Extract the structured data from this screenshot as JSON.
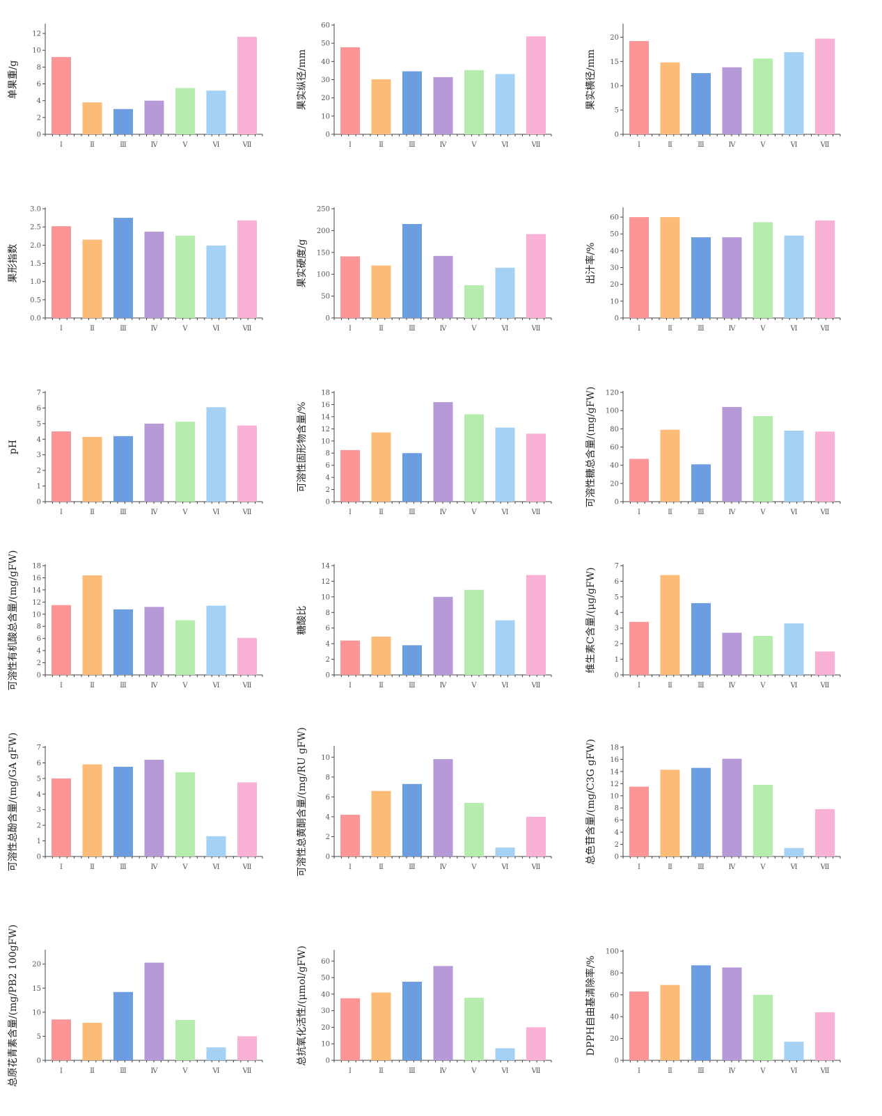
{
  "colors": [
    "#fc9696",
    "#fdbb78",
    "#6b9de0",
    "#b69ad8",
    "#b6edae",
    "#a4d1f4",
    "#f9b2d6"
  ],
  "chart_data": [
    {
      "type": "bar",
      "ylabel": "单果重/g",
      "categories": [
        "Ⅰ",
        "Ⅱ",
        "Ⅲ",
        "Ⅳ",
        "Ⅴ",
        "Ⅵ",
        "Ⅶ"
      ],
      "values": [
        9.2,
        3.8,
        3.0,
        4.0,
        5.5,
        5.2,
        11.6
      ],
      "ylim": [
        0,
        13
      ],
      "yticks": [
        0,
        2,
        4,
        6,
        8,
        10,
        12
      ]
    },
    {
      "type": "bar",
      "ylabel": "果实纵径/mm",
      "categories": [
        "Ⅰ",
        "Ⅱ",
        "Ⅲ",
        "Ⅳ",
        "Ⅴ",
        "Ⅵ",
        "Ⅶ"
      ],
      "values": [
        47.8,
        30.2,
        34.6,
        31.4,
        35.2,
        33.1,
        53.8
      ],
      "ylim": [
        0,
        60
      ],
      "yticks": [
        0,
        10,
        20,
        30,
        40,
        50,
        60
      ]
    },
    {
      "type": "bar",
      "ylabel": "果实横径/mm",
      "categories": [
        "Ⅰ",
        "Ⅱ",
        "Ⅲ",
        "Ⅳ",
        "Ⅴ",
        "Ⅵ",
        "Ⅶ"
      ],
      "values": [
        19.2,
        14.8,
        12.6,
        13.8,
        15.6,
        16.9,
        19.7
      ],
      "ylim": [
        0,
        22.5
      ],
      "yticks": [
        0,
        5,
        10,
        15,
        20
      ]
    },
    {
      "type": "bar",
      "ylabel": "果形指数",
      "categories": [
        "Ⅰ",
        "Ⅱ",
        "Ⅲ",
        "Ⅳ",
        "Ⅴ",
        "Ⅵ",
        "Ⅶ"
      ],
      "values": [
        2.52,
        2.15,
        2.75,
        2.37,
        2.26,
        1.99,
        2.68
      ],
      "ylim": [
        0,
        3.0
      ],
      "yticks": [
        "0.0",
        "0.5",
        "1.0",
        "1.5",
        "2.0",
        "2.5",
        "3.0"
      ]
    },
    {
      "type": "bar",
      "ylabel": "果实硬度/g",
      "categories": [
        "Ⅰ",
        "Ⅱ",
        "Ⅲ",
        "Ⅳ",
        "Ⅴ",
        "Ⅵ",
        "Ⅶ"
      ],
      "values": [
        141,
        120,
        215,
        142,
        75,
        115,
        192
      ],
      "ylim": [
        0,
        250
      ],
      "yticks": [
        0,
        50,
        100,
        150,
        200,
        250
      ]
    },
    {
      "type": "bar",
      "ylabel": "出汁率/%",
      "categories": [
        "Ⅰ",
        "Ⅱ",
        "Ⅲ",
        "Ⅳ",
        "Ⅴ",
        "Ⅵ",
        "Ⅶ"
      ],
      "values": [
        60,
        60,
        48,
        48,
        57,
        49,
        58
      ],
      "ylim": [
        0,
        65
      ],
      "yticks": [
        0,
        10,
        20,
        30,
        40,
        50,
        60
      ]
    },
    {
      "type": "bar",
      "ylabel": "pH",
      "categories": [
        "Ⅰ",
        "Ⅱ",
        "Ⅲ",
        "Ⅳ",
        "Ⅴ",
        "Ⅵ",
        "Ⅶ"
      ],
      "values": [
        4.5,
        4.15,
        4.2,
        5.0,
        5.12,
        6.05,
        4.88
      ],
      "ylim": [
        0,
        7
      ],
      "yticks": [
        0,
        1,
        2,
        3,
        4,
        5,
        6,
        7
      ]
    },
    {
      "type": "bar",
      "ylabel": "可溶性固形物含量/%",
      "categories": [
        "Ⅰ",
        "Ⅱ",
        "Ⅲ",
        "Ⅳ",
        "Ⅴ",
        "Ⅵ",
        "Ⅶ"
      ],
      "values": [
        8.5,
        11.4,
        8.0,
        16.4,
        14.4,
        12.2,
        11.2
      ],
      "ylim": [
        0,
        18
      ],
      "yticks": [
        0,
        2,
        4,
        6,
        8,
        10,
        12,
        14,
        16,
        18
      ]
    },
    {
      "type": "bar",
      "ylabel": "可溶性糖总含量/(mg/gFW)",
      "categories": [
        "Ⅰ",
        "Ⅱ",
        "Ⅲ",
        "Ⅳ",
        "Ⅴ",
        "Ⅵ",
        "Ⅶ"
      ],
      "values": [
        47,
        79,
        41,
        104,
        94,
        78,
        77
      ],
      "ylim": [
        0,
        120
      ],
      "yticks": [
        0,
        20,
        40,
        60,
        80,
        100,
        120
      ]
    },
    {
      "type": "bar",
      "ylabel": "可溶性有机酸总含量/(mg/gFW)",
      "categories": [
        "Ⅰ",
        "Ⅱ",
        "Ⅲ",
        "Ⅳ",
        "Ⅴ",
        "Ⅵ",
        "Ⅶ"
      ],
      "values": [
        11.5,
        16.4,
        10.8,
        11.2,
        9.0,
        11.4,
        6.1
      ],
      "ylim": [
        0,
        18
      ],
      "yticks": [
        0,
        2,
        4,
        6,
        8,
        10,
        12,
        14,
        16,
        18
      ]
    },
    {
      "type": "bar",
      "ylabel": "糖酸比",
      "categories": [
        "Ⅰ",
        "Ⅱ",
        "Ⅲ",
        "Ⅳ",
        "Ⅴ",
        "Ⅵ",
        "Ⅶ"
      ],
      "values": [
        4.4,
        4.9,
        3.8,
        10.0,
        10.9,
        7.0,
        12.8
      ],
      "ylim": [
        0,
        14
      ],
      "yticks": [
        0,
        2,
        4,
        6,
        8,
        10,
        12,
        14
      ]
    },
    {
      "type": "bar",
      "ylabel": "维生素C含量/(μg/gFW)",
      "categories": [
        "Ⅰ",
        "Ⅱ",
        "Ⅲ",
        "Ⅳ",
        "Ⅴ",
        "Ⅵ",
        "Ⅶ"
      ],
      "values": [
        3.4,
        6.4,
        4.6,
        2.7,
        2.5,
        3.3,
        1.5
      ],
      "ylim": [
        0,
        7
      ],
      "yticks": [
        0,
        1,
        2,
        3,
        4,
        5,
        6,
        7
      ]
    },
    {
      "type": "bar",
      "ylabel": "可溶性总酚含量/(mg/GA gFW)",
      "categories": [
        "Ⅰ",
        "Ⅱ",
        "Ⅲ",
        "Ⅳ",
        "Ⅴ",
        "Ⅵ",
        "Ⅶ"
      ],
      "values": [
        5.0,
        5.9,
        5.75,
        6.2,
        5.4,
        1.3,
        4.75
      ],
      "ylim": [
        0,
        7
      ],
      "yticks": [
        0,
        1,
        2,
        3,
        4,
        5,
        6,
        7
      ]
    },
    {
      "type": "bar",
      "ylabel": "可溶性总黄酮含量/(mg/RU gFW)",
      "categories": [
        "Ⅰ",
        "Ⅱ",
        "Ⅲ",
        "Ⅳ",
        "Ⅴ",
        "Ⅵ",
        "Ⅶ"
      ],
      "values": [
        4.2,
        6.6,
        7.3,
        9.8,
        5.4,
        0.9,
        4.0
      ],
      "ylim": [
        0,
        11
      ],
      "yticks": [
        0,
        2,
        4,
        6,
        8,
        10
      ]
    },
    {
      "type": "bar",
      "ylabel": "总色苷含量/(mg/C3G gFW)",
      "categories": [
        "Ⅰ",
        "Ⅱ",
        "Ⅲ",
        "Ⅳ",
        "Ⅴ",
        "Ⅵ",
        "Ⅶ"
      ],
      "values": [
        11.5,
        14.3,
        14.6,
        16.1,
        11.8,
        1.4,
        7.8
      ],
      "ylim": [
        0,
        18
      ],
      "yticks": [
        0,
        2,
        4,
        6,
        8,
        10,
        12,
        14,
        16,
        18
      ]
    },
    {
      "type": "bar",
      "ylabel": "总原花青素含量/(mg/PB2 100gFW)",
      "categories": [
        "Ⅰ",
        "Ⅱ",
        "Ⅲ",
        "Ⅳ",
        "Ⅴ",
        "Ⅵ",
        "Ⅶ"
      ],
      "values": [
        8.5,
        7.8,
        14.2,
        20.3,
        8.4,
        2.7,
        5.0
      ],
      "ylim": [
        0,
        22.7
      ],
      "yticks": [
        0,
        5,
        10,
        15,
        20
      ]
    },
    {
      "type": "bar",
      "ylabel": "总抗氧化活性/(μmol/gFW)",
      "categories": [
        "Ⅰ",
        "Ⅱ",
        "Ⅲ",
        "Ⅳ",
        "Ⅴ",
        "Ⅵ",
        "Ⅶ"
      ],
      "values": [
        37.5,
        41,
        47.5,
        57,
        37.8,
        7.3,
        20
      ],
      "ylim": [
        0,
        66
      ],
      "yticks": [
        0,
        10,
        20,
        30,
        40,
        50,
        60
      ]
    },
    {
      "type": "bar",
      "ylabel": "DPPH自由基清除率/%",
      "categories": [
        "Ⅰ",
        "Ⅱ",
        "Ⅲ",
        "Ⅳ",
        "Ⅴ",
        "Ⅵ",
        "Ⅶ"
      ],
      "values": [
        63,
        69,
        87,
        85,
        60,
        17,
        44
      ],
      "ylim": [
        0,
        100
      ],
      "yticks": [
        0,
        20,
        40,
        60,
        80,
        100
      ]
    }
  ]
}
